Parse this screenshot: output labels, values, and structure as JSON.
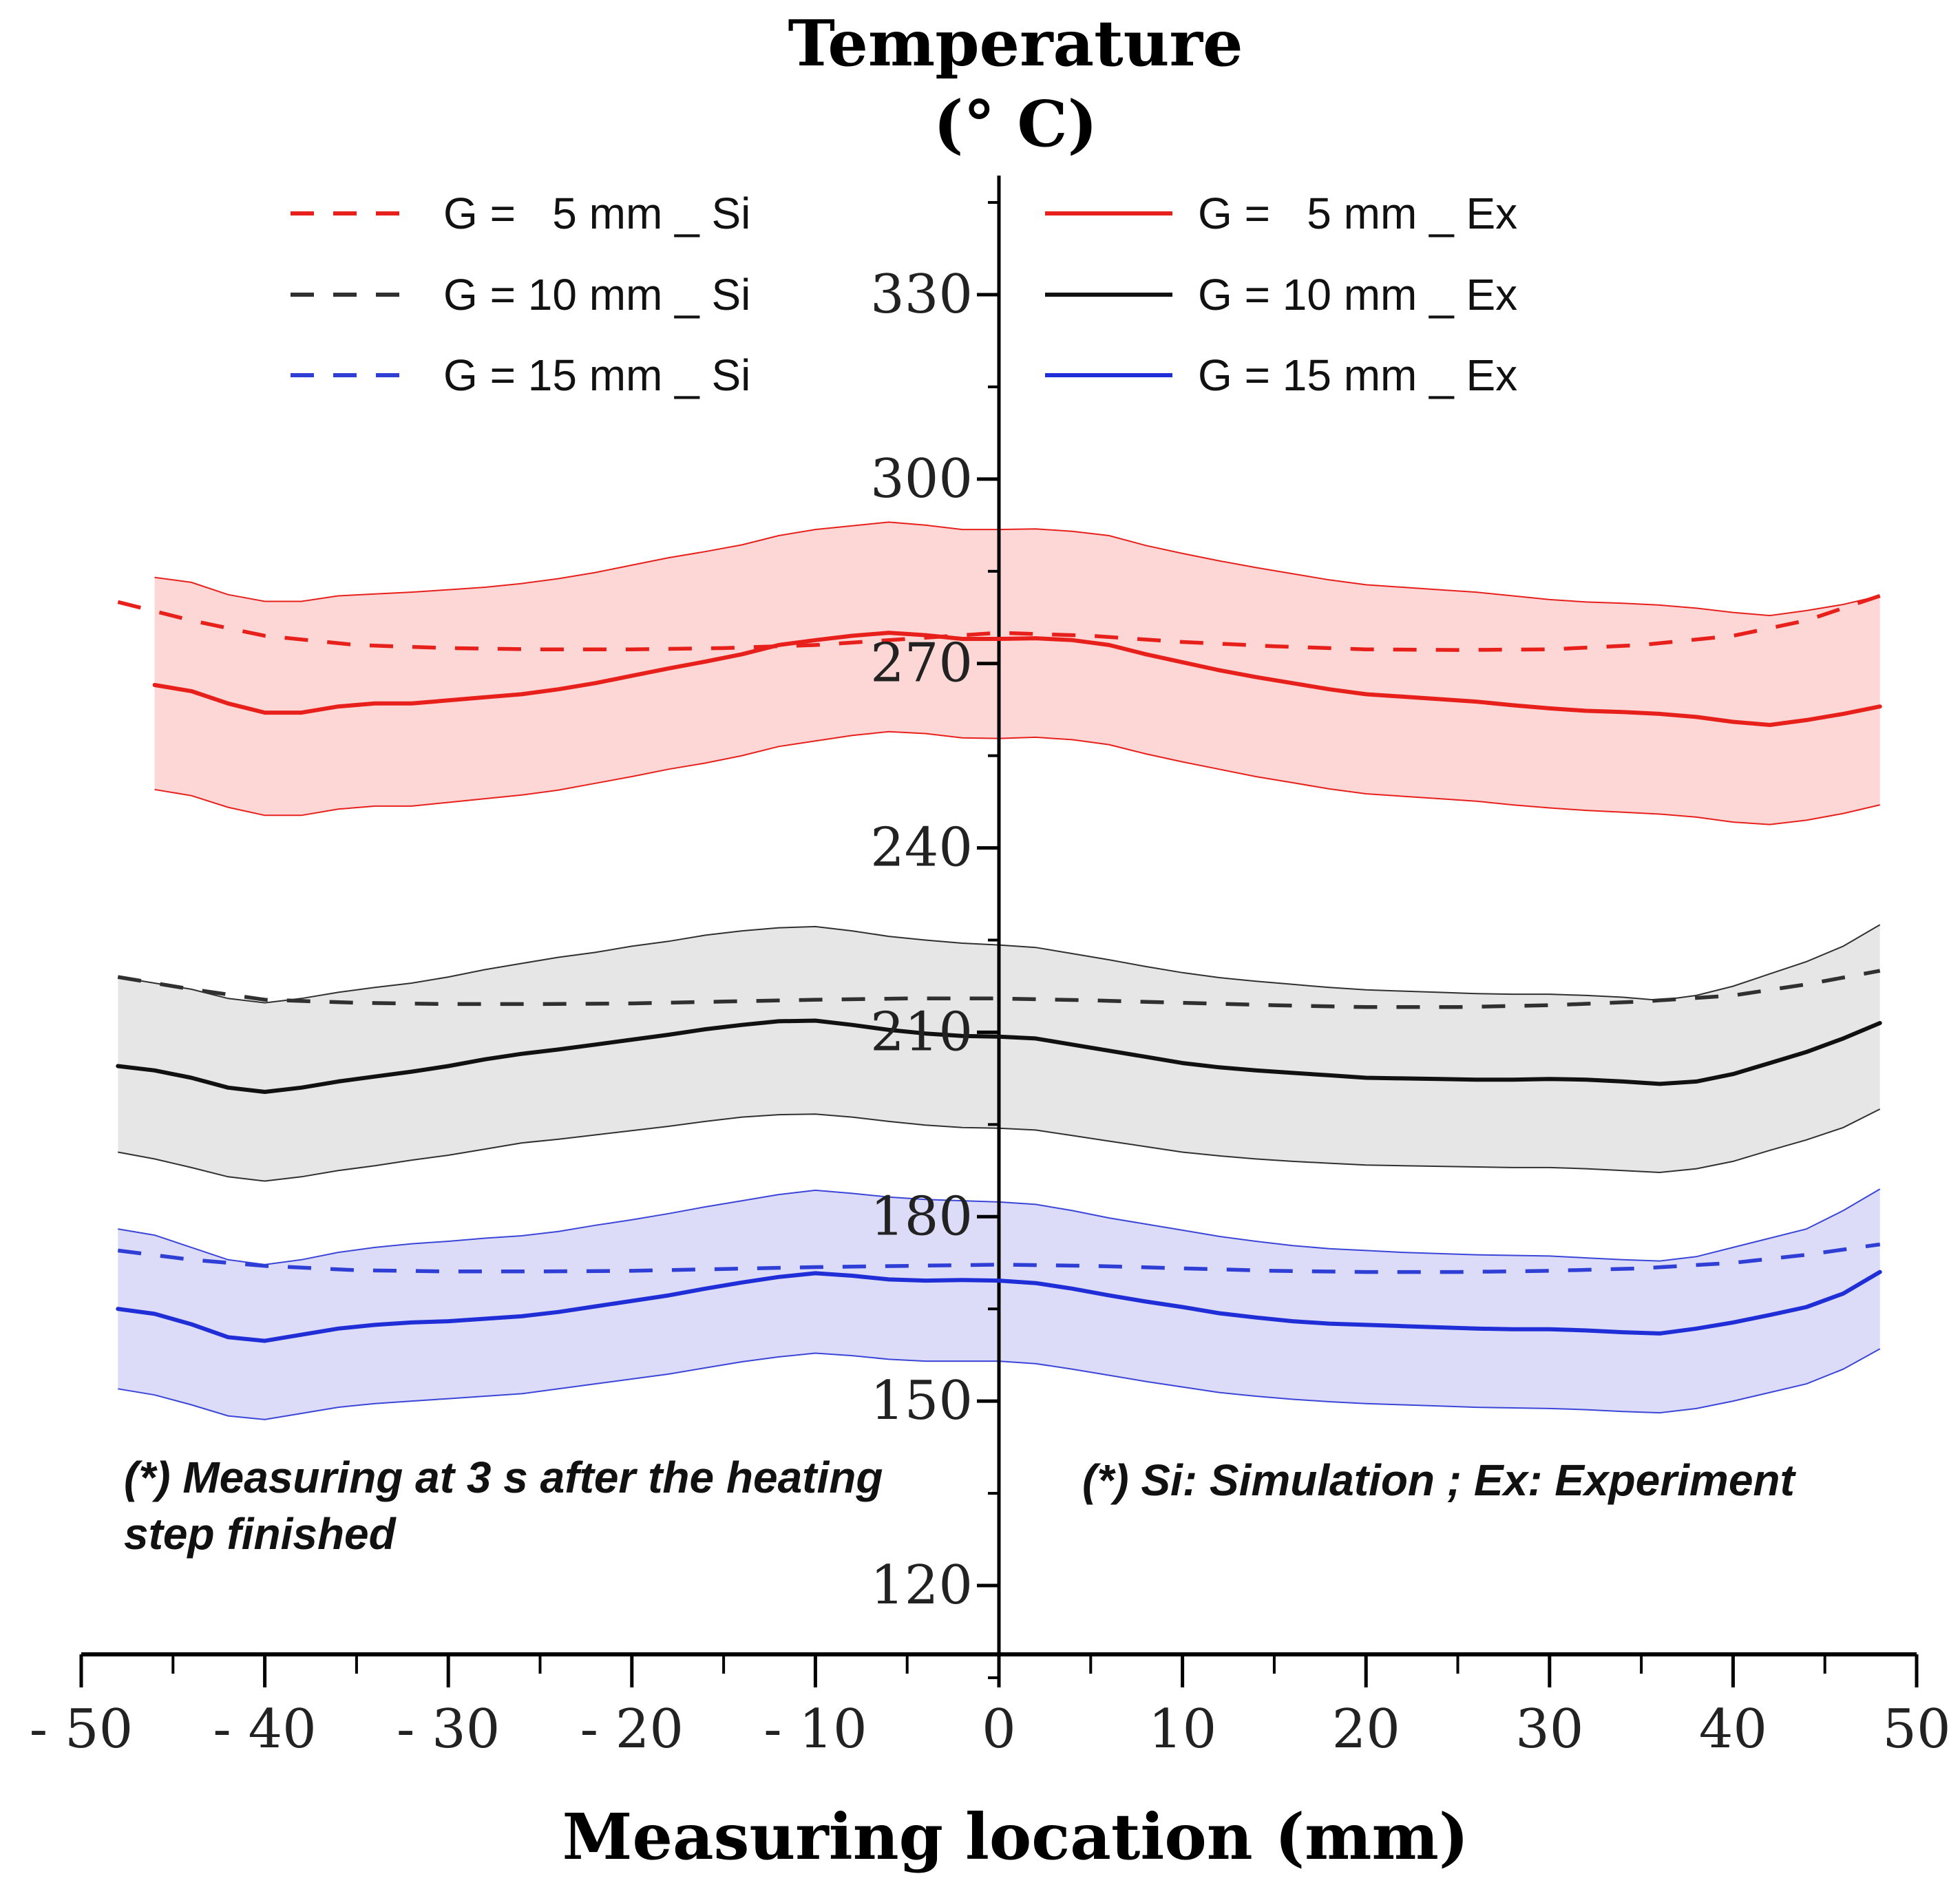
{
  "chart_data": {
    "type": "line",
    "title": "Temperature",
    "ylabel": "(° C)",
    "xlabel": "Measuring location (mm)",
    "xlim": [
      -50,
      50
    ],
    "ylim": [
      110,
      345
    ],
    "x_ticks": [
      -50,
      -40,
      -30,
      -20,
      -10,
      0,
      10,
      20,
      30,
      40,
      50
    ],
    "x_tick_labels": [
      "- 50",
      "- 40",
      "- 30",
      "- 20",
      "- 10",
      "0",
      "10",
      "20",
      "30",
      "40",
      "50"
    ],
    "y_ticks": [
      120,
      150,
      180,
      210,
      240,
      270,
      300,
      330
    ],
    "y_tick_labels": [
      "120",
      "150",
      "180",
      "210",
      "240",
      "270",
      "300",
      "330"
    ],
    "grid": false,
    "legend_position": "top",
    "series": [
      {
        "name": "G =   5 mm _ Si",
        "kind": "simulation",
        "color": "#e8201c",
        "dashed": true,
        "x": [
          -48,
          -44,
          -40,
          -35,
          -30,
          -25,
          -20,
          -15,
          -10,
          -5,
          0,
          5,
          10,
          15,
          20,
          25,
          30,
          35,
          40,
          44,
          48
        ],
        "y": [
          280,
          277,
          274.5,
          273,
          272.5,
          272.3,
          272.3,
          272.5,
          273,
          274,
          275,
          274.5,
          273.5,
          272.8,
          272.3,
          272.2,
          272.3,
          273,
          274.5,
          277,
          281
        ]
      },
      {
        "name": "G = 10 mm _ Si",
        "kind": "simulation",
        "color": "#303030",
        "dashed": true,
        "x": [
          -48,
          -44,
          -40,
          -35,
          -30,
          -25,
          -20,
          -15,
          -10,
          -5,
          0,
          5,
          10,
          15,
          20,
          25,
          30,
          35,
          40,
          44,
          48
        ],
        "y": [
          219,
          217,
          215.3,
          214.8,
          214.6,
          214.6,
          214.7,
          215,
          215.3,
          215.5,
          215.5,
          215.2,
          214.8,
          214.4,
          214.1,
          214.1,
          214.4,
          215,
          216,
          217.8,
          220
        ]
      },
      {
        "name": "G = 15 mm _ Si",
        "kind": "simulation",
        "color": "#2f3fd6",
        "dashed": true,
        "x": [
          -48,
          -44,
          -40,
          -35,
          -30,
          -25,
          -20,
          -15,
          -10,
          -5,
          0,
          5,
          10,
          15,
          20,
          25,
          30,
          35,
          40,
          44,
          48
        ],
        "y": [
          174.5,
          173,
          172,
          171.3,
          171.1,
          171.1,
          171.2,
          171.5,
          171.8,
          172,
          172.2,
          172,
          171.6,
          171.2,
          171,
          171,
          171.2,
          171.6,
          172.5,
          173.8,
          175.5
        ]
      },
      {
        "name": "G =   5 mm _ Ex",
        "kind": "experiment",
        "color": "#e8201c",
        "dashed": false,
        "x": [
          -46,
          -44,
          -42,
          -40,
          -38,
          -36,
          -34,
          -32,
          -30,
          -28,
          -26,
          -24,
          -22,
          -20,
          -18,
          -16,
          -14,
          -12,
          -10,
          -8,
          -6,
          -4,
          -2,
          0,
          2,
          4,
          6,
          8,
          10,
          12,
          14,
          16,
          18,
          20,
          22,
          24,
          26,
          28,
          30,
          32,
          34,
          36,
          38,
          40,
          42,
          44,
          46,
          48
        ],
        "y": [
          266.5,
          265.5,
          263.5,
          262,
          262,
          263,
          263.5,
          263.5,
          264,
          264.5,
          265,
          265.8,
          266.8,
          268,
          269.2,
          270.3,
          271.5,
          273,
          273.8,
          274.5,
          275,
          274.6,
          274,
          274,
          274.1,
          273.8,
          273,
          271.5,
          270.2,
          268.9,
          267.8,
          266.8,
          265.8,
          265,
          264.6,
          264.2,
          263.8,
          263.2,
          262.7,
          262.3,
          262.1,
          261.8,
          261.3,
          260.5,
          260,
          260.8,
          261.8,
          263
        ]
      },
      {
        "name": "G = 10 mm _ Ex",
        "kind": "experiment",
        "color": "#111111",
        "dashed": false,
        "x": [
          -48,
          -46,
          -44,
          -42,
          -40,
          -38,
          -36,
          -34,
          -32,
          -30,
          -28,
          -26,
          -24,
          -22,
          -20,
          -18,
          -16,
          -14,
          -12,
          -10,
          -8,
          -6,
          -4,
          -2,
          0,
          2,
          4,
          6,
          8,
          10,
          12,
          14,
          16,
          18,
          20,
          22,
          24,
          26,
          28,
          30,
          32,
          34,
          36,
          38,
          40,
          42,
          44,
          46,
          48
        ],
        "y": [
          204.5,
          203.8,
          202.6,
          201,
          200.3,
          201,
          202,
          202.8,
          203.6,
          204.5,
          205.6,
          206.5,
          207.2,
          208,
          208.8,
          209.6,
          210.5,
          211.2,
          211.8,
          211.9,
          211.2,
          210.4,
          209.8,
          209.4,
          209.3,
          209,
          208,
          207,
          206,
          205,
          204.3,
          203.8,
          203.4,
          203,
          202.6,
          202.5,
          202.4,
          202.3,
          202.3,
          202.4,
          202.3,
          202,
          201.6,
          202,
          203.2,
          205,
          206.8,
          209,
          211.5
        ]
      },
      {
        "name": "G = 15 mm _ Ex",
        "kind": "experiment",
        "color": "#1f2ed6",
        "dashed": false,
        "x": [
          -48,
          -46,
          -44,
          -42,
          -40,
          -38,
          -36,
          -34,
          -32,
          -30,
          -28,
          -26,
          -24,
          -22,
          -20,
          -18,
          -16,
          -14,
          -12,
          -10,
          -8,
          -6,
          -4,
          -2,
          0,
          2,
          4,
          6,
          8,
          10,
          12,
          14,
          16,
          18,
          20,
          22,
          24,
          26,
          28,
          30,
          32,
          34,
          36,
          38,
          40,
          42,
          44,
          46,
          48
        ],
        "y": [
          165,
          164.2,
          162.5,
          160.4,
          159.8,
          160.8,
          161.8,
          162.4,
          162.8,
          163,
          163.4,
          163.8,
          164.5,
          165.4,
          166.3,
          167.2,
          168.3,
          169.3,
          170.2,
          170.8,
          170.4,
          169.8,
          169.6,
          169.7,
          169.6,
          169.2,
          168.3,
          167.2,
          166.2,
          165.3,
          164.3,
          163.6,
          163,
          162.6,
          162.4,
          162.2,
          162,
          161.8,
          161.7,
          161.7,
          161.5,
          161.2,
          161,
          161.8,
          162.8,
          164,
          165.3,
          167.5,
          171
        ]
      }
    ],
    "bands": [
      {
        "name": "G = 5 mm band",
        "fill": "#fcd7d5",
        "edge": "#e8201c",
        "x": [
          -46,
          -44,
          -42,
          -40,
          -38,
          -36,
          -34,
          -32,
          -30,
          -28,
          -26,
          -24,
          -22,
          -20,
          -18,
          -16,
          -14,
          -12,
          -10,
          -8,
          -6,
          -4,
          -2,
          0,
          2,
          4,
          6,
          8,
          10,
          12,
          14,
          16,
          18,
          20,
          22,
          24,
          26,
          28,
          30,
          32,
          34,
          36,
          38,
          40,
          42,
          44,
          46,
          48
        ],
        "upper": [
          284,
          283.2,
          281.2,
          280.1,
          280.1,
          281,
          281.3,
          281.6,
          282,
          282.4,
          283,
          283.8,
          284.8,
          286,
          287.2,
          288.2,
          289.3,
          290.8,
          291.8,
          292.4,
          293,
          292.5,
          291.8,
          291.8,
          291.9,
          291.5,
          290.8,
          289.2,
          287.9,
          286.7,
          285.6,
          284.6,
          283.6,
          282.8,
          282.4,
          282,
          281.6,
          281,
          280.4,
          280,
          279.8,
          279.5,
          279,
          278.3,
          277.8,
          278.6,
          279.6,
          281
        ],
        "lower": [
          249.5,
          248.5,
          246.6,
          245.3,
          245.3,
          246.3,
          246.8,
          246.8,
          247.4,
          248,
          248.6,
          249.4,
          250.5,
          251.6,
          252.8,
          253.8,
          255,
          256.5,
          257.4,
          258.3,
          258.9,
          258.6,
          257.9,
          257.8,
          258,
          257.6,
          256.8,
          255.3,
          254,
          252.8,
          251.6,
          250.6,
          249.6,
          248.8,
          248.4,
          248,
          247.6,
          247,
          246.5,
          246.1,
          245.8,
          245.5,
          245,
          244.2,
          243.8,
          244.5,
          245.6,
          247
        ]
      },
      {
        "name": "G = 10 mm band",
        "fill": "#e6e6e6",
        "edge": "#303030",
        "x": [
          -48,
          -46,
          -44,
          -42,
          -40,
          -38,
          -36,
          -34,
          -32,
          -30,
          -28,
          -26,
          -24,
          -22,
          -20,
          -18,
          -16,
          -14,
          -12,
          -10,
          -8,
          -6,
          -4,
          -2,
          0,
          2,
          4,
          6,
          8,
          10,
          12,
          14,
          16,
          18,
          20,
          22,
          24,
          26,
          28,
          30,
          32,
          34,
          36,
          38,
          40,
          42,
          44,
          46,
          48
        ],
        "upper": [
          219,
          218,
          217,
          215.5,
          214.8,
          215.5,
          216.5,
          217.3,
          218,
          219,
          220.2,
          221.2,
          222.2,
          223,
          224,
          224.8,
          225.8,
          226.5,
          227,
          227.2,
          226.5,
          225.6,
          225,
          224.5,
          224.2,
          223.8,
          222.8,
          221.8,
          220.7,
          219.7,
          218.9,
          218.3,
          217.8,
          217.3,
          216.9,
          216.7,
          216.5,
          216.3,
          216.2,
          216.2,
          216,
          215.7,
          215.2,
          216,
          217.5,
          219.5,
          221.5,
          224,
          227.5
        ],
        "lower": [
          190.5,
          189.4,
          188,
          186.5,
          185.8,
          186.5,
          187.5,
          188.3,
          189.2,
          190,
          191,
          192,
          192.6,
          193.3,
          194,
          194.7,
          195.5,
          196.2,
          196.6,
          196.7,
          196.2,
          195.5,
          194.9,
          194.5,
          194.4,
          194.1,
          193.2,
          192.3,
          191.4,
          190.5,
          189.9,
          189.4,
          189,
          188.7,
          188.4,
          188.3,
          188.2,
          188.1,
          188,
          188,
          187.8,
          187.5,
          187.2,
          187.8,
          189,
          190.8,
          192.5,
          194.5,
          197.5
        ]
      },
      {
        "name": "G = 15 mm band",
        "fill": "#dcdcf8",
        "edge": "#3b45d8",
        "x": [
          -48,
          -46,
          -44,
          -42,
          -40,
          -38,
          -36,
          -34,
          -32,
          -30,
          -28,
          -26,
          -24,
          -22,
          -20,
          -18,
          -16,
          -14,
          -12,
          -10,
          -8,
          -6,
          -4,
          -2,
          0,
          2,
          4,
          6,
          8,
          10,
          12,
          14,
          16,
          18,
          20,
          22,
          24,
          26,
          28,
          30,
          32,
          34,
          36,
          38,
          40,
          42,
          44,
          46,
          48
        ],
        "upper": [
          178,
          177,
          175,
          173,
          172.2,
          173,
          174.2,
          175,
          175.6,
          176,
          176.5,
          176.9,
          177.6,
          178.6,
          179.5,
          180.5,
          181.6,
          182.6,
          183.6,
          184.3,
          183.8,
          183.2,
          182.8,
          182.6,
          182.4,
          182,
          181,
          179.8,
          178.8,
          177.8,
          176.8,
          176,
          175.3,
          174.8,
          174.5,
          174.2,
          174,
          173.8,
          173.7,
          173.6,
          173.3,
          173,
          172.8,
          173.5,
          175,
          176.5,
          178,
          181,
          184.5
        ],
        "lower": [
          152,
          151,
          149.4,
          147.6,
          147,
          148,
          149,
          149.6,
          150,
          150.4,
          150.8,
          151.2,
          152,
          152.8,
          153.6,
          154.4,
          155.4,
          156.4,
          157.2,
          157.8,
          157.4,
          156.8,
          156.5,
          156.5,
          156.5,
          156.1,
          155.2,
          154.2,
          153.2,
          152.3,
          151.4,
          150.8,
          150.3,
          149.9,
          149.6,
          149.4,
          149.2,
          149,
          148.9,
          148.8,
          148.6,
          148.3,
          148.1,
          148.8,
          150,
          151.4,
          152.8,
          155.2,
          158.5
        ]
      }
    ],
    "annotations": [
      {
        "lines": [
          "(*) Measuring at 3 s after the heating",
          "step finished"
        ],
        "position": "lower-left"
      },
      {
        "lines": [
          "(*) Si: Simulation ; Ex: Experiment"
        ],
        "position": "lower-right"
      }
    ]
  }
}
